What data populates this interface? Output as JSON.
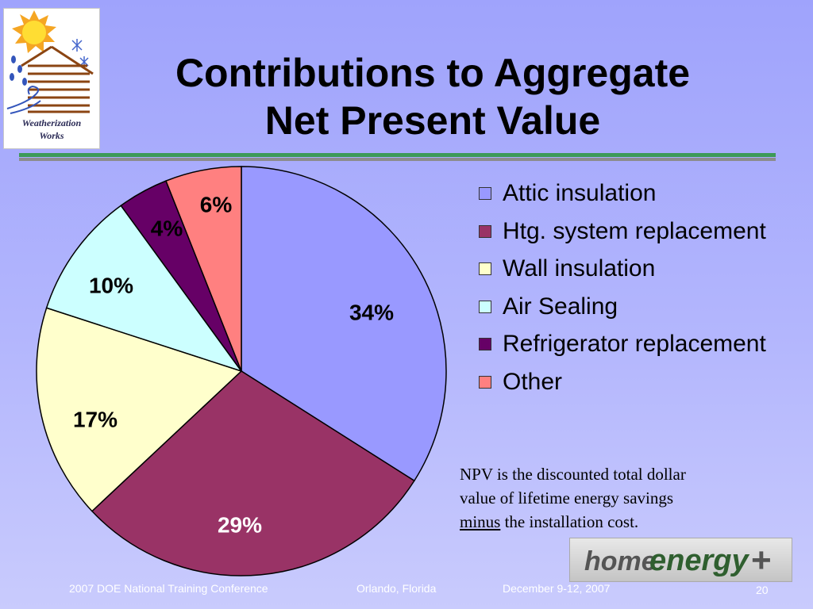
{
  "logo": {
    "caption_line1": "Weatherization",
    "caption_line2": "Works"
  },
  "title": {
    "line1": "Contributions to Aggregate",
    "line2": "Net Present Value"
  },
  "chart_data": {
    "type": "pie",
    "slices": [
      {
        "label": "Attic insulation",
        "value": 34,
        "value_text": "34%",
        "color": "#9999ff"
      },
      {
        "label": "Htg. system replacement",
        "value": 29,
        "value_text": "29%",
        "color": "#993366"
      },
      {
        "label": "Wall insulation",
        "value": 17,
        "value_text": "17%",
        "color": "#ffffcc"
      },
      {
        "label": "Air Sealing",
        "value": 10,
        "value_text": "10%",
        "color": "#ccffff"
      },
      {
        "label": "Refrigerator replacement",
        "value": 4,
        "value_text": "4%",
        "color": "#660066"
      },
      {
        "label": "Other",
        "value": 6,
        "value_text": "6%",
        "color": "#ff8080"
      }
    ],
    "legend_position": "right"
  },
  "note": {
    "line1": "NPV is the discounted total dollar",
    "line2": "value of lifetime energy savings",
    "emphasis": "minus",
    "line3_rest": " the installation cost."
  },
  "sponsor_logo": {
    "part1": "home",
    "part2": "energy",
    "symbol": "+"
  },
  "footer": {
    "event": "2007 DOE National Training Conference",
    "location": "Orlando, Florida",
    "dates": "December 9-12, 2007",
    "page": "20"
  }
}
